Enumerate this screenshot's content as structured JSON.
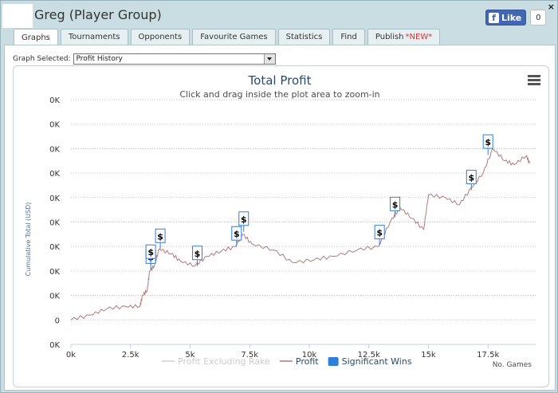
{
  "window": {
    "title": "Greg (Player Group)",
    "close_label": "×"
  },
  "facebook": {
    "like_label": "Like",
    "count": "0"
  },
  "tabs": [
    {
      "label": "Graphs",
      "active": true
    },
    {
      "label": "Tournaments"
    },
    {
      "label": "Opponents"
    },
    {
      "label": "Favourite Games"
    },
    {
      "label": "Statistics"
    },
    {
      "label": "Find"
    },
    {
      "label": "Publish",
      "badge": "*NEW*"
    }
  ],
  "graph_select": {
    "label": "Graph Selected:",
    "value": "Profit History"
  },
  "chart_data": {
    "type": "line",
    "title": "Total Profit",
    "subtitle": "Click and drag inside the plot area to zoom-in",
    "ylabel": "Cumulative Total (USD)",
    "xlabel": "No. Games",
    "x_ticks": [
      "0k",
      "2.5k",
      "5k",
      "7.5k",
      "10k",
      "12.5k",
      "15k",
      "17.5k"
    ],
    "x_tick_values": [
      0,
      2500,
      5000,
      7500,
      10000,
      12500,
      15000,
      17500
    ],
    "y_ticks": [
      "0K",
      "0K",
      "0K",
      "0K",
      "0K",
      "0K",
      "0K",
      "0K",
      "0K",
      "0",
      "0K"
    ],
    "y_tick_levels": [
      10,
      9,
      8,
      7,
      6,
      5,
      4,
      3,
      2,
      1,
      0
    ],
    "xlim": [
      0,
      19500
    ],
    "ylim": [
      0,
      10
    ],
    "grid": true,
    "legend_position": "bottom",
    "legend": [
      {
        "name": "Profit Excluding Rake",
        "color": "#d0d0d0",
        "kind": "line"
      },
      {
        "name": "Profit",
        "color": "#b07a7a",
        "kind": "line"
      },
      {
        "name": "Significant Wins",
        "color": "#2f7ed8",
        "kind": "box"
      }
    ],
    "series": [
      {
        "name": "Profit",
        "color": "#b07a7a",
        "points": [
          [
            0,
            1.0
          ],
          [
            800,
            1.2
          ],
          [
            1500,
            1.45
          ],
          [
            2300,
            1.55
          ],
          [
            2900,
            1.55
          ],
          [
            3000,
            2.0
          ],
          [
            3200,
            2.2
          ],
          [
            3300,
            3.0
          ],
          [
            3500,
            3.2
          ],
          [
            3700,
            3.9
          ],
          [
            4200,
            3.7
          ],
          [
            4600,
            3.4
          ],
          [
            5200,
            3.2
          ],
          [
            5700,
            3.6
          ],
          [
            6300,
            3.8
          ],
          [
            6900,
            4.0
          ],
          [
            7200,
            4.5
          ],
          [
            7600,
            4.1
          ],
          [
            8500,
            3.85
          ],
          [
            9300,
            3.35
          ],
          [
            10200,
            3.45
          ],
          [
            11000,
            3.6
          ],
          [
            12000,
            3.85
          ],
          [
            12900,
            4.0
          ],
          [
            13400,
            5.0
          ],
          [
            13800,
            5.6
          ],
          [
            14300,
            5.15
          ],
          [
            14800,
            4.7
          ],
          [
            15000,
            6.1
          ],
          [
            15700,
            6.0
          ],
          [
            16300,
            5.7
          ],
          [
            16800,
            6.4
          ],
          [
            17300,
            7.0
          ],
          [
            17700,
            8.0
          ],
          [
            18200,
            7.5
          ],
          [
            18600,
            7.35
          ],
          [
            19100,
            7.7
          ],
          [
            19250,
            7.4
          ]
        ]
      }
    ],
    "significant_wins": [
      {
        "x": 3350,
        "y": 3.05,
        "label": "$"
      },
      {
        "x": 3350,
        "y": 3.25,
        "label": "$"
      },
      {
        "x": 3750,
        "y": 3.9,
        "label": "$"
      },
      {
        "x": 5300,
        "y": 3.2,
        "label": "$"
      },
      {
        "x": 6950,
        "y": 4.0,
        "label": "$"
      },
      {
        "x": 7250,
        "y": 4.6,
        "label": "$"
      },
      {
        "x": 12950,
        "y": 4.05,
        "label": "$"
      },
      {
        "x": 13600,
        "y": 5.2,
        "label": "$"
      },
      {
        "x": 16800,
        "y": 6.3,
        "label": "$"
      },
      {
        "x": 17500,
        "y": 7.75,
        "label": "$"
      }
    ]
  }
}
